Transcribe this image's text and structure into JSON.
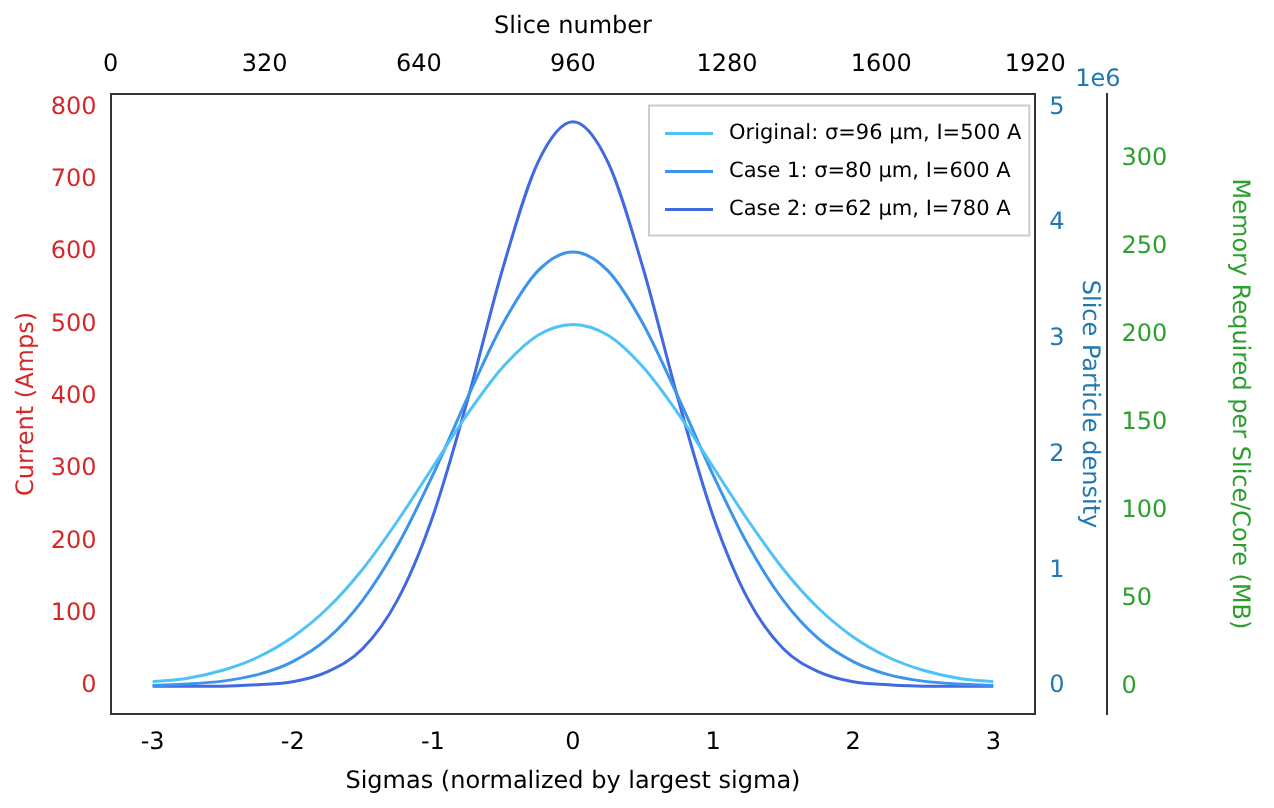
{
  "chart_data": {
    "type": "line",
    "xlabel": "Sigmas (normalized by largest sigma)",
    "ylabel": "Current (Amps)",
    "y2label": "Slice Particle density",
    "y3label": "Memory Required per Slice/Core (MB)",
    "x2label": "Slice number",
    "x": [
      -3,
      -2.75,
      -2.5,
      -2.25,
      -2,
      -1.75,
      -1.5,
      -1.25,
      -1,
      -0.75,
      -0.5,
      -0.25,
      0,
      0.25,
      0.5,
      0.75,
      1,
      1.25,
      1.5,
      1.75,
      2,
      2.25,
      2.5,
      2.75,
      3
    ],
    "series": [
      {
        "name": "Original: σ=96 μm, I=500 A",
        "color": "#4fc3f7",
        "values": [
          6,
          11,
          22,
          40,
          68,
          108,
          162,
          229,
          303,
          377,
          441,
          485,
          500,
          485,
          441,
          377,
          303,
          229,
          162,
          108,
          68,
          40,
          22,
          11,
          6
        ]
      },
      {
        "name": "Case 1: σ=80 μm, I=600 A",
        "color": "#3d95eb",
        "values": [
          1,
          3,
          7,
          16,
          34,
          66,
          119,
          195,
          292,
          400,
          501,
          574,
          600,
          574,
          501,
          400,
          292,
          195,
          119,
          66,
          34,
          16,
          7,
          3,
          1
        ]
      },
      {
        "name": "Case 2: σ=62 μm, I=780 A",
        "color": "#4169e1",
        "values": [
          0,
          0,
          0,
          2,
          6,
          20,
          52,
          120,
          235,
          397,
          578,
          724,
          780,
          724,
          578,
          397,
          235,
          120,
          52,
          20,
          6,
          2,
          0,
          0,
          0
        ]
      }
    ],
    "xlim": [
      -3.3,
      3.3
    ],
    "xticks": [
      -3,
      -2,
      -1,
      0,
      1,
      2,
      3
    ],
    "x2lim": [
      0,
      1920
    ],
    "x2ticks": [
      0,
      320,
      640,
      960,
      1280,
      1600,
      1920
    ],
    "ylim": [
      -39,
      819
    ],
    "yticks": [
      0,
      100,
      200,
      300,
      400,
      500,
      600,
      700,
      800
    ],
    "y2lim": [
      -0.244,
      5.12
    ],
    "y2ticks": [
      0,
      1,
      2,
      3,
      4,
      5
    ],
    "y3lim": [
      -16,
      337
    ],
    "y3ticks": [
      0,
      50,
      100,
      150,
      200,
      250,
      300
    ],
    "annotations": [
      "1e6"
    ],
    "legend": "top right",
    "grid": false,
    "marker": "none",
    "line_style": "solid"
  }
}
